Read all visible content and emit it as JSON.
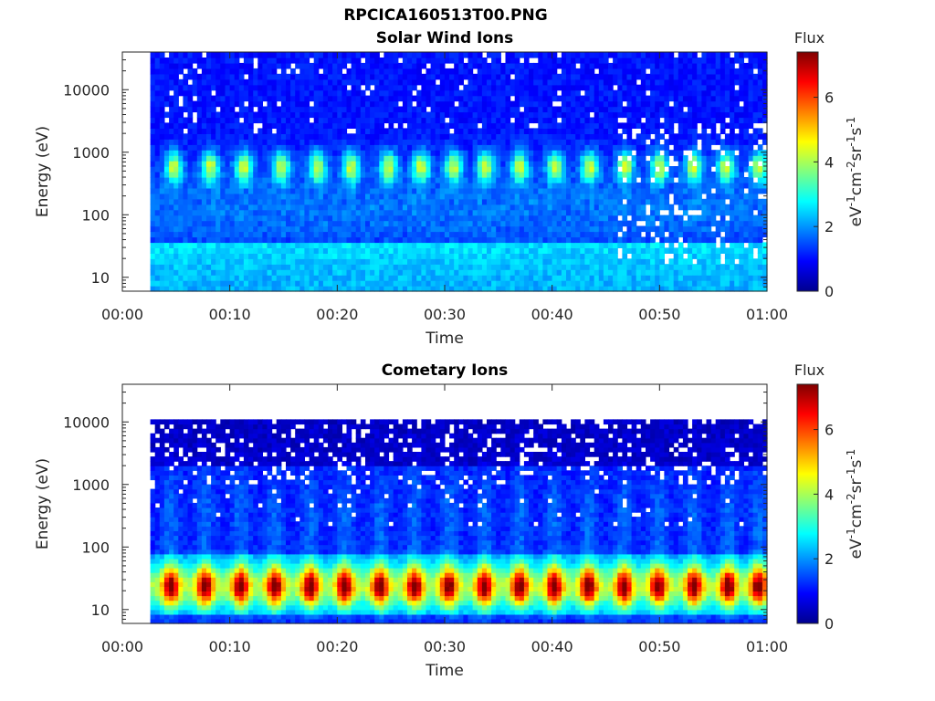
{
  "figure_title": "RPCICA160513T00.PNG",
  "chart_data": [
    {
      "type": "heatmap",
      "title": "Solar Wind Ions",
      "xlabel": "Time",
      "ylabel": "Energy (eV)",
      "x_ticks": [
        "00:00",
        "00:10",
        "00:20",
        "00:30",
        "00:40",
        "00:50",
        "01:00"
      ],
      "x_range_minutes": [
        0,
        60
      ],
      "data_start_minutes": 2.6,
      "y_scale": "log",
      "y_ticks": [
        "10",
        "100",
        "1000",
        "10000"
      ],
      "y_range_eV": [
        6,
        40000
      ],
      "data_max_eV": 40000,
      "colorbar": {
        "title": "Flux",
        "label": "eV-1cm-2sr-1s-1",
        "ticks": [
          "0",
          "2",
          "4",
          "6"
        ],
        "range": [
          0,
          7.4
        ],
        "colormap": "jet"
      },
      "features": {
        "peak_band_eV": [
          350,
          1000
        ],
        "peak_flux": 4.0,
        "peak_times_minutes": [
          4.8,
          8.2,
          11.3,
          14.8,
          18.2,
          21.3,
          24.8,
          27.8,
          30.8,
          33.8,
          37.0,
          40.3,
          43.5,
          46.8,
          50.0,
          53.2,
          56.2,
          59.3
        ],
        "low_energy_flux": 2.2,
        "background_flux": 1.0
      }
    },
    {
      "type": "heatmap",
      "title": "Cometary Ions",
      "xlabel": "Time",
      "ylabel": "Energy (eV)",
      "x_ticks": [
        "00:00",
        "00:10",
        "00:20",
        "00:30",
        "00:40",
        "00:50",
        "01:00"
      ],
      "x_range_minutes": [
        0,
        60
      ],
      "data_start_minutes": 2.6,
      "y_scale": "log",
      "y_ticks": [
        "10",
        "100",
        "1000",
        "10000"
      ],
      "y_range_eV": [
        6,
        40000
      ],
      "data_max_eV": 11000,
      "colorbar": {
        "title": "Flux",
        "label": "eV-1cm-2sr-1s-1",
        "ticks": [
          "0",
          "2",
          "4",
          "6"
        ],
        "range": [
          0,
          7.4
        ],
        "colormap": "jet"
      },
      "features": {
        "peak_band_eV": [
          14,
          40
        ],
        "peak_flux": 5.6,
        "peak_times_minutes": [
          4.5,
          7.7,
          11.0,
          14.2,
          17.5,
          20.7,
          24.0,
          27.2,
          30.4,
          33.7,
          37.0,
          40.2,
          43.4,
          46.7,
          49.9,
          53.2,
          56.4,
          59.2
        ],
        "background_flux": 1.2
      }
    }
  ]
}
